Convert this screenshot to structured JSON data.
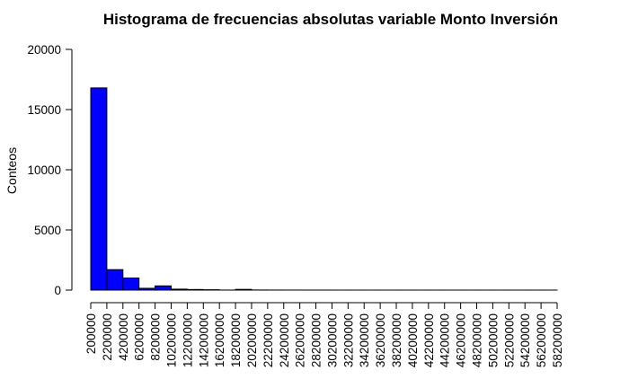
{
  "chart_data": {
    "type": "bar",
    "title": "Histograma de frecuencias absolutas variable Monto Inversión",
    "xlabel": "",
    "ylabel": "Conteos",
    "bar_color": "#0000ff",
    "bar_border_color": "#000000",
    "grid": false,
    "legend": "none",
    "xlim": [
      200000,
      58200000
    ],
    "ylim": [
      0,
      20000
    ],
    "x_tick_values": [
      200000,
      2200000,
      4200000,
      6200000,
      8200000,
      10200000,
      12200000,
      14200000,
      16200000,
      18200000,
      20200000,
      22200000,
      24200000,
      26200000,
      28200000,
      30200000,
      32200000,
      34200000,
      36200000,
      38200000,
      40200000,
      42200000,
      44200000,
      46200000,
      48200000,
      50200000,
      52200000,
      54200000,
      56200000,
      58200000
    ],
    "x_tick_labels": [
      "200000",
      "2200000",
      "4200000",
      "6200000",
      "8200000",
      "10200000",
      "12200000",
      "14200000",
      "16200000",
      "18200000",
      "20200000",
      "22200000",
      "24200000",
      "26200000",
      "28200000",
      "30200000",
      "32200000",
      "34200000",
      "36200000",
      "38200000",
      "40200000",
      "42200000",
      "44200000",
      "46200000",
      "48200000",
      "50200000",
      "52200000",
      "54200000",
      "56200000",
      "58200000"
    ],
    "y_tick_values": [
      0,
      5000,
      10000,
      15000,
      20000
    ],
    "y_tick_labels": [
      "0",
      "5000",
      "10000",
      "15000",
      "20000"
    ],
    "bin_edges": [
      200000,
      2200000,
      4200000,
      6200000,
      8200000,
      10200000,
      12200000,
      14200000,
      16200000,
      18200000,
      20200000,
      22200000,
      24200000,
      26200000,
      28200000,
      30200000,
      32200000,
      34200000,
      36200000,
      38200000,
      40200000,
      42200000,
      44200000,
      46200000,
      48200000,
      50200000,
      52200000,
      54200000,
      56200000,
      58200000
    ],
    "values": [
      16800,
      1700,
      1000,
      150,
      350,
      80,
      50,
      30,
      5,
      60,
      10,
      5,
      3,
      2,
      2,
      1,
      1,
      1,
      1,
      1,
      1,
      1,
      1,
      1,
      1,
      1,
      1,
      1,
      1
    ]
  }
}
